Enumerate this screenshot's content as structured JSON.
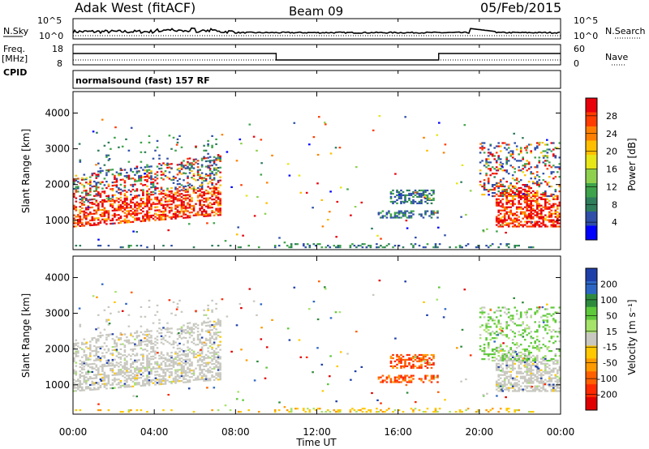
{
  "header": {
    "station": "Adak West (fitACF)",
    "beam": "Beam 09",
    "date": "05/Feb/2015"
  },
  "left_labels": {
    "nsky": "N.Sky",
    "freq": "Freq.",
    "freq_unit": "[MHz]",
    "cpid": "CPID"
  },
  "right_labels": {
    "nsearch": "N.Search",
    "nave": "Nave"
  },
  "cpid_text": "normalsound (fast) 157 RF",
  "noise_panel": {
    "left_ticks": [
      "10^5",
      "10^0"
    ],
    "right_ticks": [
      "10^5",
      "10^0"
    ]
  },
  "freq_panel": {
    "left_ticks": [
      "18",
      "8"
    ],
    "right_ticks": [
      "60",
      "0"
    ]
  },
  "colorbar_power": {
    "label": "Power [dB]",
    "ticks": [
      "28",
      "24",
      "20",
      "16",
      "12",
      "8",
      "4"
    ],
    "colors": [
      "#e8000b",
      "#ff3d00",
      "#ff8000",
      "#ffbf00",
      "#e6e619",
      "#8fd14f",
      "#3ea34a",
      "#2e7d5b",
      "#2f4fa8",
      "#0000ff"
    ]
  },
  "colorbar_velocity": {
    "label": "Velocity [m s⁻¹]",
    "ticks": [
      "200",
      "100",
      "50",
      "15",
      "-15",
      "-50",
      "-100",
      "-200"
    ],
    "colors": [
      "#1f3fa8",
      "#2b66c5",
      "#2e8b3d",
      "#5ec93a",
      "#a6e36a",
      "#c8c8c0",
      "#ffc800",
      "#ff9a00",
      "#ff6000",
      "#ff2a00",
      "#e00000"
    ]
  },
  "chart_data": [
    {
      "type": "heatmap",
      "panel": "power",
      "ylabel": "Slant Range [km]",
      "yticks": [
        "1000",
        "2000",
        "3000",
        "4000"
      ],
      "ylim": [
        180,
        4600
      ],
      "xlim_hours": [
        0,
        24
      ],
      "colorbar_range_db": [
        0,
        32
      ]
    },
    {
      "type": "heatmap",
      "panel": "velocity",
      "ylabel": "Slant Range [km]",
      "yticks": [
        "1000",
        "2000",
        "3000",
        "4000"
      ],
      "ylim": [
        180,
        4600
      ],
      "xlim_hours": [
        0,
        24
      ],
      "xticks": [
        "00:00",
        "04:00",
        "08:00",
        "12:00",
        "16:00",
        "20:00",
        "00:00"
      ],
      "xlabel": "Time UT"
    }
  ]
}
